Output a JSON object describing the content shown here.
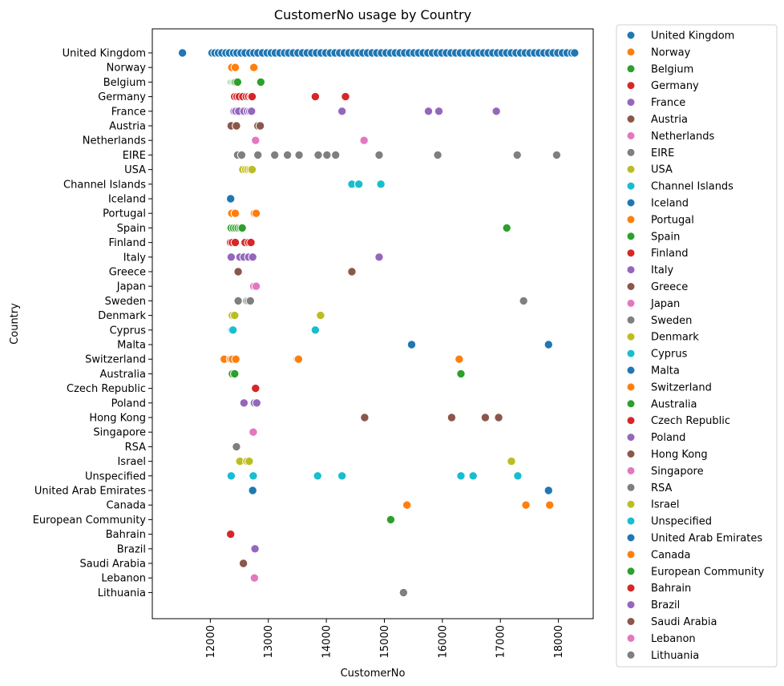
{
  "chart_data": {
    "type": "scatter",
    "title": "CustomerNo usage by Country",
    "xlabel": "CustomerNo",
    "ylabel": "Country",
    "xlim": [
      11000,
      18600
    ],
    "xticks": [
      12000,
      13000,
      14000,
      15000,
      16000,
      17000,
      18000
    ],
    "grid": false,
    "legend_placement": "outside-right",
    "countries": [
      "United Kingdom",
      "Norway",
      "Belgium",
      "Germany",
      "France",
      "Austria",
      "Netherlands",
      "EIRE",
      "USA",
      "Channel Islands",
      "Iceland",
      "Portugal",
      "Spain",
      "Finland",
      "Italy",
      "Greece",
      "Japan",
      "Sweden",
      "Denmark",
      "Cyprus",
      "Malta",
      "Switzerland",
      "Australia",
      "Czech Republic",
      "Poland",
      "Hong Kong",
      "Singapore",
      "RSA",
      "Israel",
      "Unspecified",
      "United Arab Emirates",
      "Canada",
      "European Community",
      "Bahrain",
      "Brazil",
      "Saudi Arabia",
      "Lebanon",
      "Lithuania"
    ],
    "palette": [
      "#1f77b4",
      "#ff7f0e",
      "#2ca02c",
      "#d62728",
      "#9467bd",
      "#8c564b",
      "#e377c2",
      "#7f7f7f",
      "#bcbd22",
      "#17becf"
    ],
    "series": [
      {
        "name": "United Kingdom",
        "x": [
          11520,
          12030,
          12080,
          12140,
          12200,
          12270,
          12330,
          12400,
          12460,
          12530,
          12600,
          12680,
          12750,
          12820,
          12900,
          12980,
          13050,
          13120,
          13200,
          13280,
          13350,
          13430,
          13510,
          13590,
          13670,
          13750,
          13830,
          13910,
          13990,
          14070,
          14150,
          14230,
          14310,
          14390,
          14470,
          14550,
          14630,
          14710,
          14790,
          14870,
          14950,
          15030,
          15110,
          15190,
          15270,
          15350,
          15430,
          15510,
          15590,
          15670,
          15750,
          15830,
          15910,
          15990,
          16070,
          16150,
          16230,
          16310,
          16390,
          16470,
          16550,
          16630,
          16710,
          16790,
          16870,
          16950,
          17030,
          17110,
          17190,
          17270,
          17350,
          17430,
          17510,
          17590,
          17670,
          17750,
          17830,
          17910,
          17990,
          18070,
          18150,
          18230,
          18280
        ]
      },
      {
        "name": "Norway",
        "x": [
          12370,
          12430,
          12750
        ]
      },
      {
        "name": "Belgium",
        "x": [
          12360,
          12380,
          12400,
          12420,
          12440,
          12470,
          12870
        ]
      },
      {
        "name": "Germany",
        "x": [
          12420,
          12460,
          12500,
          12560,
          12620,
          12660,
          12700,
          12720,
          13810,
          14330
        ]
      },
      {
        "name": "France",
        "x": [
          12410,
          12440,
          12490,
          12580,
          12640,
          12680,
          12710,
          14270,
          15760,
          15940,
          16930
        ]
      },
      {
        "name": "Austria",
        "x": [
          12360,
          12450,
          12820,
          12860
        ]
      },
      {
        "name": "Netherlands",
        "x": [
          12780,
          14650
        ]
      },
      {
        "name": "EIRE",
        "x": [
          12470,
          12540,
          12820,
          13110,
          13330,
          13530,
          13860,
          14010,
          14160,
          14910,
          15920,
          17290,
          17970
        ]
      },
      {
        "name": "USA",
        "x": [
          12560,
          12610,
          12650,
          12690,
          12720
        ]
      },
      {
        "name": "Channel Islands",
        "x": [
          14440,
          14560,
          14940
        ]
      },
      {
        "name": "Iceland",
        "x": [
          12350
        ]
      },
      {
        "name": "Portugal",
        "x": [
          12370,
          12430,
          12760,
          12790
        ]
      },
      {
        "name": "Spain",
        "x": [
          12360,
          12400,
          12440,
          12480,
          12520,
          12550,
          17110
        ]
      },
      {
        "name": "Finland",
        "x": [
          12350,
          12380,
          12430,
          12600,
          12660,
          12700
        ]
      },
      {
        "name": "Italy",
        "x": [
          12360,
          12510,
          12580,
          12660,
          12730,
          14910
        ]
      },
      {
        "name": "Greece",
        "x": [
          12480,
          14440
        ]
      },
      {
        "name": "Japan",
        "x": [
          12750,
          12790
        ]
      },
      {
        "name": "Sweden",
        "x": [
          12480,
          12630,
          12660,
          12690,
          17400
        ]
      },
      {
        "name": "Denmark",
        "x": [
          12380,
          12420,
          13900
        ]
      },
      {
        "name": "Cyprus",
        "x": [
          12370,
          12390,
          13810
        ]
      },
      {
        "name": "Malta",
        "x": [
          15470,
          17830
        ]
      },
      {
        "name": "Switzerland",
        "x": [
          12240,
          12350,
          12380,
          12440,
          13500,
          13520,
          16290
        ]
      },
      {
        "name": "Australia",
        "x": [
          12380,
          12420,
          16320
        ]
      },
      {
        "name": "Czech Republic",
        "x": [
          12780
        ]
      },
      {
        "name": "Poland",
        "x": [
          12580,
          12760,
          12800
        ]
      },
      {
        "name": "Hong Kong",
        "x": [
          14660,
          16160,
          16740,
          16970
        ]
      },
      {
        "name": "Singapore",
        "x": [
          12740
        ]
      },
      {
        "name": "RSA",
        "x": [
          12450
        ]
      },
      {
        "name": "Israel",
        "x": [
          12510,
          12630,
          12670,
          17190
        ]
      },
      {
        "name": "Unspecified",
        "x": [
          12360,
          12740,
          13850,
          14270,
          16320,
          16530,
          17300
        ]
      },
      {
        "name": "United Arab Emirates",
        "x": [
          12730,
          17830
        ]
      },
      {
        "name": "Canada",
        "x": [
          15390,
          17440,
          17850
        ]
      },
      {
        "name": "European Community",
        "x": [
          15110
        ]
      },
      {
        "name": "Bahrain",
        "x": [
          12350
        ]
      },
      {
        "name": "Brazil",
        "x": [
          12770
        ]
      },
      {
        "name": "Saudi Arabia",
        "x": [
          12570
        ]
      },
      {
        "name": "Lebanon",
        "x": [
          12760
        ]
      },
      {
        "name": "Lithuania",
        "x": [
          15330
        ]
      }
    ]
  }
}
